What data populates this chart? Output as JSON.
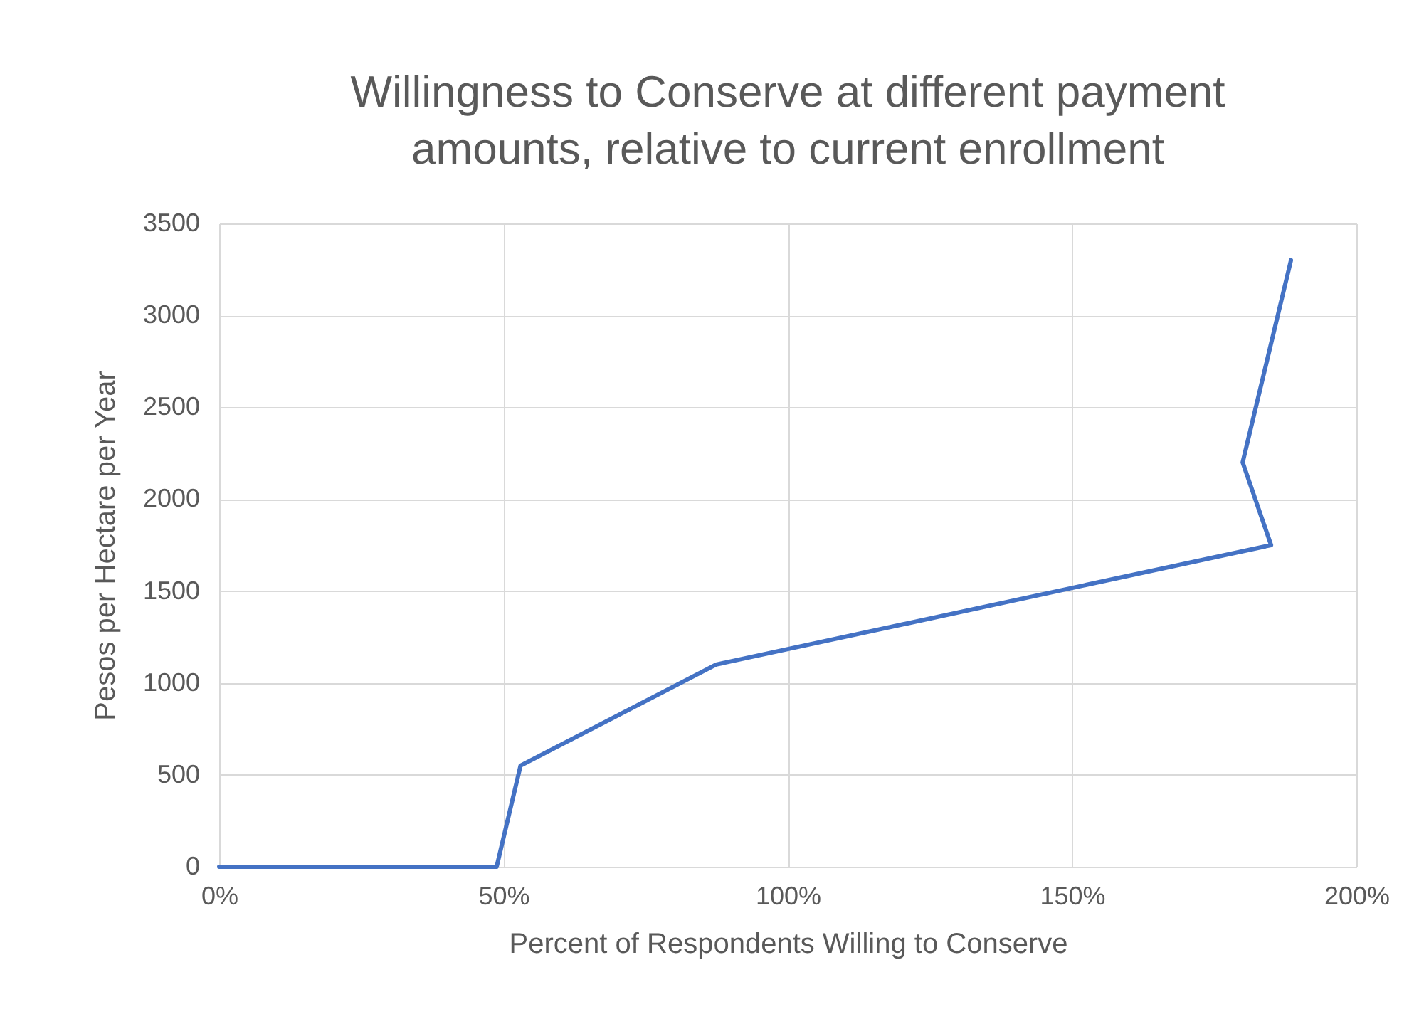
{
  "chart_data": {
    "type": "line",
    "title": "Willingness to Conserve at different payment amounts, relative to current enrollment",
    "xlabel": "Percent of Respondents Willing to Conserve",
    "ylabel": "Pesos per Hectare per Year",
    "x": [
      0,
      48.8,
      53,
      87.4,
      185,
      180,
      188.5
    ],
    "series": [
      {
        "color": "#4472c4",
        "values": [
          0,
          0,
          550,
          1100,
          1750,
          2200,
          3300
        ]
      }
    ],
    "xlim": [
      0,
      200
    ],
    "xticks": [
      {
        "value": 0,
        "label": "0%"
      },
      {
        "value": 50,
        "label": "50%"
      },
      {
        "value": 100,
        "label": "100%"
      },
      {
        "value": 150,
        "label": "150%"
      },
      {
        "value": 200,
        "label": "200%"
      }
    ],
    "ylim": [
      0,
      3500
    ],
    "yticks": [
      0,
      500,
      1000,
      1500,
      2000,
      2500,
      3000,
      3500
    ],
    "grid": true
  }
}
